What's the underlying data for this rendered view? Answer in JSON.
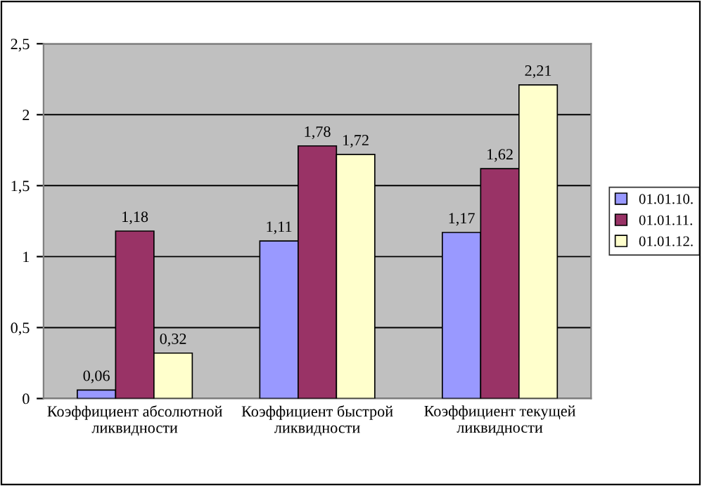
{
  "chart_data": {
    "type": "bar",
    "categories": [
      "Коэффициент абсолютной\nликвидности",
      "Коэффициент быстрой\nликвидности",
      "Коэффициент текущей\nликвидности"
    ],
    "series": [
      {
        "name": "01.01.10.",
        "color": "#9999ff",
        "values": [
          0.06,
          1.11,
          1.17
        ],
        "value_labels": [
          "0,06",
          "1,11",
          "1,17"
        ]
      },
      {
        "name": "01.01.11.",
        "color": "#993366",
        "values": [
          1.18,
          1.78,
          1.62
        ],
        "value_labels": [
          "1,18",
          "1,78",
          "1,62"
        ]
      },
      {
        "name": "01.01.12.",
        "color": "#ffffcc",
        "values": [
          0.32,
          1.72,
          2.21
        ],
        "value_labels": [
          "0,32",
          "1,72",
          "2,21"
        ]
      }
    ],
    "ylim": [
      0,
      2.5
    ],
    "yticks": [
      0,
      {
        "value": 0.5,
        "label": "0,5"
      },
      1,
      {
        "value": 1.5,
        "label": "1,5"
      },
      2,
      {
        "value": 2.5,
        "label": "2,5"
      }
    ],
    "grid": "y",
    "legend": "right"
  }
}
